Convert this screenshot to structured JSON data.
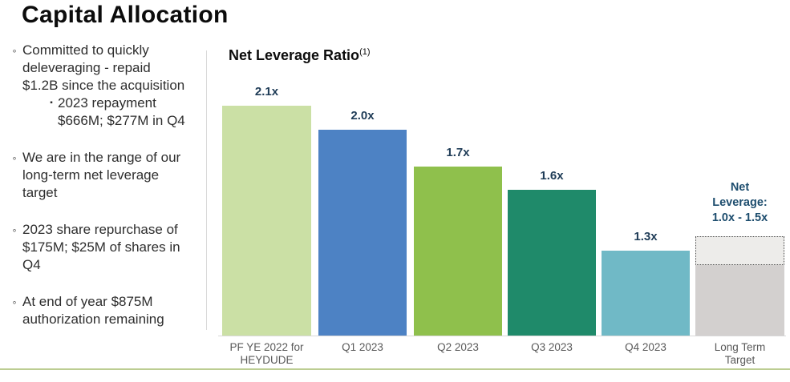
{
  "page": {
    "title": "Capital Allocation",
    "bullet_marker": "◦",
    "sub_bullet_marker": "▪",
    "bullets": [
      {
        "text": "Committed to quickly deleveraging - repaid $1.2B since the acquisition",
        "sub": [
          "2023 repayment $666M; $277M in Q4"
        ]
      },
      {
        "text": "We are in the range of our long-term net leverage target",
        "sub": []
      },
      {
        "text": "2023 share repurchase of $175M; $25M of shares in Q4",
        "sub": []
      },
      {
        "text": "At end of year $875M authorization remaining",
        "sub": []
      }
    ]
  },
  "chart": {
    "title": "Net Leverage Ratio",
    "footnote_marker": "(1)"
  },
  "chart_data": {
    "type": "bar",
    "title": "Net Leverage Ratio (1)",
    "categories": [
      "PF YE 2022 for HEYDUDE",
      "Q1 2023",
      "Q2 2023",
      "Q3 2023",
      "Q4 2023",
      "Long Term Target"
    ],
    "values": [
      2.1,
      2.0,
      1.7,
      1.6,
      1.3,
      null
    ],
    "value_labels": [
      "2.1x",
      "2.0x",
      "1.7x",
      "1.6x",
      "1.3x",
      ""
    ],
    "bar_colors": [
      "#cbe0a5",
      "#4d82c4",
      "#8fc04c",
      "#1f8a6a",
      "#70b9c6",
      "#d3d0cf"
    ],
    "target_bar": {
      "category": "Long Term Target",
      "range_low": 1.0,
      "range_high": 1.5,
      "annotation_lines": [
        "Net",
        "Leverage:",
        "1.0x - 1.5x"
      ],
      "solid_color": "#d3d0cf",
      "dotted_fill": "#edecea"
    },
    "value_label_color": "#1f3c57",
    "annotation_color": "#1d4d6e",
    "axis_label_color": "#595959",
    "grid": false,
    "legend": false
  }
}
